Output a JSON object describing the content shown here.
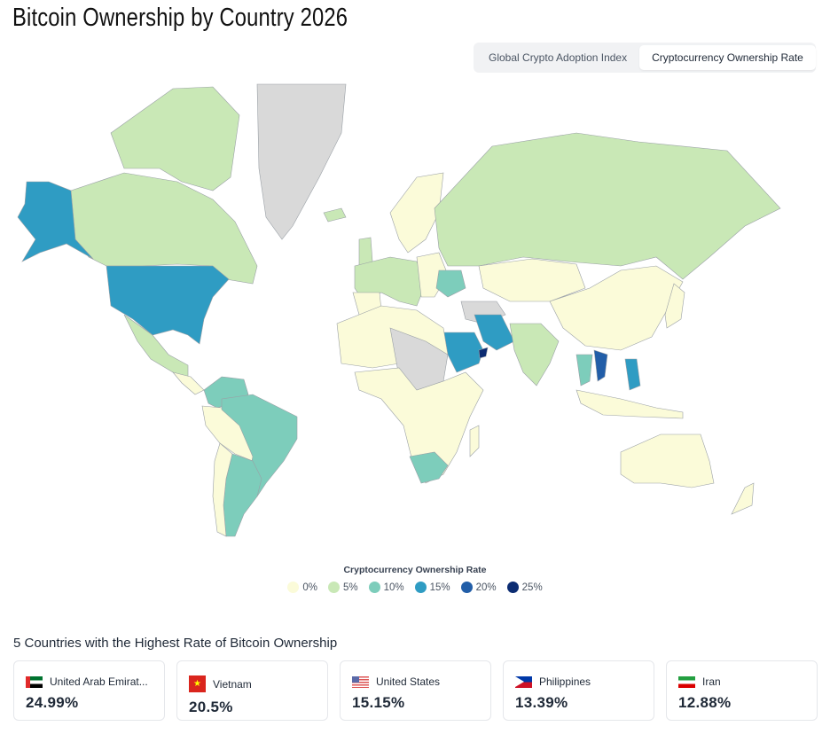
{
  "title": "Bitcoin Ownership by Country 2026",
  "toggle": {
    "options": [
      "Global Crypto Adoption Index",
      "Cryptocurrency Ownership Rate"
    ],
    "active": "Cryptocurrency Ownership Rate"
  },
  "colors": {
    "0": "#fbfbd9",
    "5": "#c9e8b6",
    "10": "#7dcdbb",
    "15": "#2f9cc3",
    "20": "#225ea8",
    "25": "#0c2c72",
    "no_data": "#d9d9d9"
  },
  "legend": {
    "title": "Cryptocurrency Ownership Rate",
    "items": [
      {
        "label": "0%",
        "color": "#fbfbd9"
      },
      {
        "label": "5%",
        "color": "#c9e8b6"
      },
      {
        "label": "10%",
        "color": "#7dcdbb"
      },
      {
        "label": "15%",
        "color": "#2f9cc3"
      },
      {
        "label": "20%",
        "color": "#225ea8"
      },
      {
        "label": "25%",
        "color": "#0c2c72"
      }
    ]
  },
  "top5": {
    "heading": "5 Countries with the Highest Rate of Bitcoin Ownership",
    "cards": [
      {
        "country": "United Arab Emirat...",
        "value": "24.99%",
        "flag": "uae-flag"
      },
      {
        "country": "Vietnam",
        "value": "20.5%",
        "flag": "vietnam-flag"
      },
      {
        "country": "United States",
        "value": "15.15%",
        "flag": "us-flag"
      },
      {
        "country": "Philippines",
        "value": "13.39%",
        "flag": "philippines-flag"
      },
      {
        "country": "Iran",
        "value": "12.88%",
        "flag": "iran-flag"
      }
    ]
  }
}
